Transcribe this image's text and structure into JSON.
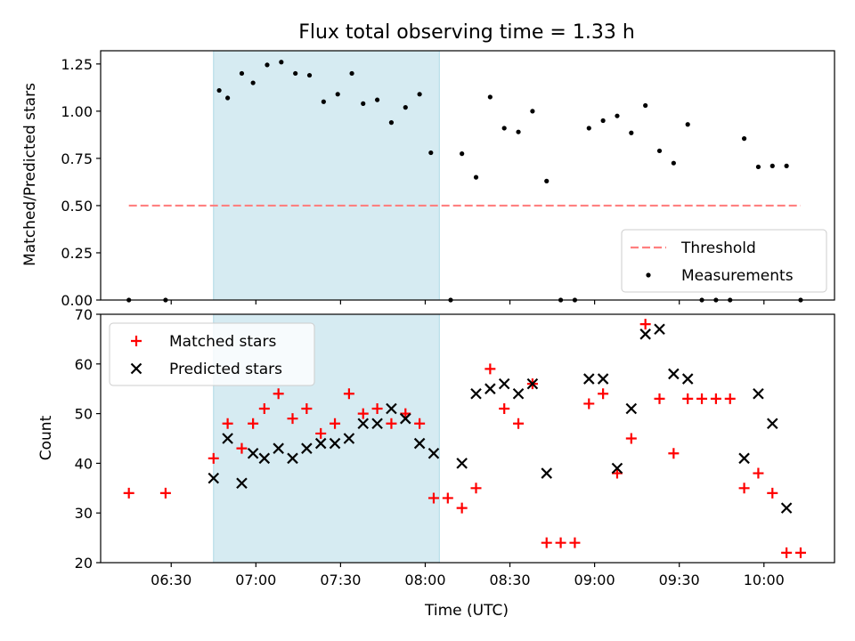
{
  "chart_data": {
    "title": "Flux total observing time = 1.33 h",
    "xlabel": "Time (UTC)",
    "x_ticks": [
      "06:30",
      "07:00",
      "07:30",
      "08:00",
      "08:30",
      "09:00",
      "09:30",
      "10:00"
    ],
    "x_range": [
      "06:05",
      "10:25"
    ],
    "shaded_interval": [
      "06:45",
      "08:05"
    ],
    "shade_color": "#add8e6",
    "panels": [
      {
        "type": "scatter",
        "ylabel": "Matched/Predicted stars",
        "ylim": [
          0,
          1.32
        ],
        "y_ticks": [
          "0.00",
          "0.25",
          "0.50",
          "0.75",
          "1.00",
          "1.25"
        ],
        "legend_position": "bottom-right",
        "threshold": {
          "name": "Threshold",
          "value": 0.5,
          "x_from": "06:15",
          "x_to": "10:13",
          "color": "#ff8080"
        },
        "series": [
          {
            "name": "Measurements",
            "color": "#000000",
            "marker": "dot",
            "points": [
              [
                "06:15",
                0.0
              ],
              [
                "06:28",
                0.0
              ],
              [
                "06:47",
                1.11
              ],
              [
                "06:50",
                1.07
              ],
              [
                "06:55",
                1.2
              ],
              [
                "06:59",
                1.15
              ],
              [
                "07:04",
                1.245
              ],
              [
                "07:09",
                1.26
              ],
              [
                "07:14",
                1.2
              ],
              [
                "07:19",
                1.19
              ],
              [
                "07:24",
                1.05
              ],
              [
                "07:29",
                1.09
              ],
              [
                "07:34",
                1.2
              ],
              [
                "07:38",
                1.04
              ],
              [
                "07:43",
                1.06
              ],
              [
                "07:48",
                0.94
              ],
              [
                "07:53",
                1.02
              ],
              [
                "07:58",
                1.09
              ],
              [
                "08:02",
                0.78
              ],
              [
                "08:09",
                0.0
              ],
              [
                "08:13",
                0.775
              ],
              [
                "08:18",
                0.65
              ],
              [
                "08:23",
                1.075
              ],
              [
                "08:28",
                0.91
              ],
              [
                "08:33",
                0.89
              ],
              [
                "08:38",
                1.0
              ],
              [
                "08:43",
                0.63
              ],
              [
                "08:48",
                0.0
              ],
              [
                "08:53",
                0.0
              ],
              [
                "08:58",
                0.91
              ],
              [
                "09:03",
                0.95
              ],
              [
                "09:08",
                0.975
              ],
              [
                "09:13",
                0.885
              ],
              [
                "09:18",
                1.03
              ],
              [
                "09:23",
                0.79
              ],
              [
                "09:28",
                0.725
              ],
              [
                "09:33",
                0.93
              ],
              [
                "09:38",
                0.0
              ],
              [
                "09:43",
                0.0
              ],
              [
                "09:48",
                0.0
              ],
              [
                "09:53",
                0.855
              ],
              [
                "09:58",
                0.705
              ],
              [
                "10:03",
                0.71
              ],
              [
                "10:08",
                0.71
              ],
              [
                "10:13",
                0.0
              ]
            ]
          }
        ]
      },
      {
        "type": "scatter",
        "ylabel": "Count",
        "ylim": [
          20,
          70
        ],
        "y_ticks": [
          "20",
          "30",
          "40",
          "50",
          "60",
          "70"
        ],
        "legend_position": "top-left",
        "series": [
          {
            "name": "Matched stars",
            "color": "#ff0000",
            "marker": "plus",
            "points": [
              [
                "06:15",
                34
              ],
              [
                "06:28",
                34
              ],
              [
                "06:45",
                41
              ],
              [
                "06:50",
                48
              ],
              [
                "06:55",
                43
              ],
              [
                "06:59",
                48
              ],
              [
                "07:03",
                51
              ],
              [
                "07:08",
                54
              ],
              [
                "07:13",
                49
              ],
              [
                "07:18",
                51
              ],
              [
                "07:23",
                46
              ],
              [
                "07:28",
                48
              ],
              [
                "07:33",
                54
              ],
              [
                "07:38",
                50
              ],
              [
                "07:43",
                51
              ],
              [
                "07:48",
                48
              ],
              [
                "07:53",
                50
              ],
              [
                "07:58",
                48
              ],
              [
                "08:03",
                33
              ],
              [
                "08:08",
                33
              ],
              [
                "08:13",
                31
              ],
              [
                "08:18",
                35
              ],
              [
                "08:23",
                59
              ],
              [
                "08:28",
                51
              ],
              [
                "08:33",
                48
              ],
              [
                "08:38",
                56
              ],
              [
                "08:43",
                24
              ],
              [
                "08:48",
                24
              ],
              [
                "08:53",
                24
              ],
              [
                "08:58",
                52
              ],
              [
                "09:03",
                54
              ],
              [
                "09:08",
                38
              ],
              [
                "09:13",
                45
              ],
              [
                "09:18",
                68
              ],
              [
                "09:23",
                53
              ],
              [
                "09:28",
                42
              ],
              [
                "09:33",
                53
              ],
              [
                "09:38",
                53
              ],
              [
                "09:43",
                53
              ],
              [
                "09:48",
                53
              ],
              [
                "09:53",
                35
              ],
              [
                "09:58",
                38
              ],
              [
                "10:03",
                34
              ],
              [
                "10:08",
                22
              ],
              [
                "10:13",
                22
              ]
            ]
          },
          {
            "name": "Predicted stars",
            "color": "#000000",
            "marker": "x",
            "points": [
              [
                "06:45",
                37
              ],
              [
                "06:50",
                45
              ],
              [
                "06:55",
                36
              ],
              [
                "06:59",
                42
              ],
              [
                "07:03",
                41
              ],
              [
                "07:08",
                43
              ],
              [
                "07:13",
                41
              ],
              [
                "07:18",
                43
              ],
              [
                "07:23",
                44
              ],
              [
                "07:28",
                44
              ],
              [
                "07:33",
                45
              ],
              [
                "07:38",
                48
              ],
              [
                "07:43",
                48
              ],
              [
                "07:48",
                51
              ],
              [
                "07:53",
                49
              ],
              [
                "07:58",
                44
              ],
              [
                "08:03",
                42
              ],
              [
                "08:13",
                40
              ],
              [
                "08:18",
                54
              ],
              [
                "08:23",
                55
              ],
              [
                "08:28",
                56
              ],
              [
                "08:33",
                54
              ],
              [
                "08:38",
                56
              ],
              [
                "08:43",
                38
              ],
              [
                "08:58",
                57
              ],
              [
                "09:03",
                57
              ],
              [
                "09:08",
                39
              ],
              [
                "09:13",
                51
              ],
              [
                "09:18",
                66
              ],
              [
                "09:23",
                67
              ],
              [
                "09:28",
                58
              ],
              [
                "09:33",
                57
              ],
              [
                "09:53",
                41
              ],
              [
                "09:58",
                54
              ],
              [
                "10:03",
                48
              ],
              [
                "10:08",
                31
              ]
            ]
          }
        ]
      }
    ]
  }
}
